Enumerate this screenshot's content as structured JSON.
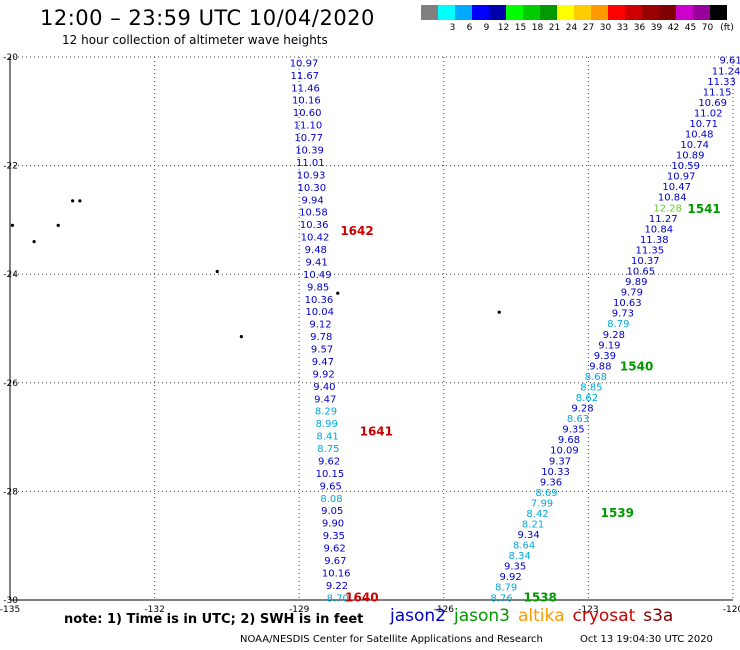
{
  "header": {
    "title": "12:00 – 23:59 UTC 10/04/2020",
    "subtitle": "12 hour collection of altimeter wave heights"
  },
  "colorbar": {
    "unit": "(ft)",
    "colors": [
      "#808080",
      "#00ffff",
      "#00aaff",
      "#0000ff",
      "#0000aa",
      "#00ff00",
      "#00cc00",
      "#009900",
      "#ffff00",
      "#ffcc00",
      "#ff9900",
      "#ff0000",
      "#cc0000",
      "#990000",
      "#800000",
      "#cc00cc",
      "#990099",
      "#000000"
    ],
    "labels": [
      "",
      "3",
      "6",
      "9",
      "12",
      "15",
      "18",
      "21",
      "24",
      "27",
      "30",
      "33",
      "36",
      "39",
      "42",
      "45",
      "70",
      ""
    ]
  },
  "footer": {
    "note": "note:  1) Time is in UTC;  2) SWH is in feet",
    "credit": "NOAA/NESDIS Center for Satellite Applications and Research",
    "timestamp": "Oct 13 19:04:30 UTC 2020"
  },
  "legend": [
    {
      "name": "jason2",
      "color": "#0000cc"
    },
    {
      "name": "jason3",
      "color": "#009900"
    },
    {
      "name": "altika",
      "color": "#ff9900"
    },
    {
      "name": "cryosat",
      "color": "#cc0000"
    },
    {
      "name": "s3a",
      "color": "#800000"
    }
  ],
  "chart_data": {
    "type": "scatter",
    "title": "12:00 – 23:59 UTC 10/04/2020",
    "xlim": [
      -135,
      -120
    ],
    "ylim": [
      -30,
      -20
    ],
    "xticks": [
      "-135",
      "-132",
      "-129",
      "-126",
      "-123",
      "-120"
    ],
    "yticks": [
      "-20",
      "-22",
      "-24",
      "-26",
      "-28",
      "-30"
    ],
    "grid": true,
    "series": [
      {
        "name": "cryosat",
        "color": "#cc0000",
        "x_start": -128.9,
        "y_start": -20.1,
        "x_end": -128.2,
        "y_end": -29.95,
        "values": [
          "10.97",
          "11.67",
          "11.46",
          "10.16",
          "10.60",
          "11.10",
          "10.77",
          "10.39",
          "11.01",
          "10.93",
          "10.30",
          "9.94",
          "10.58",
          "10.36",
          "10.42",
          "9.48",
          "9.41",
          "10.49",
          "9.85",
          "10.36",
          "10.04",
          "9.12",
          "9.78",
          "9.57",
          "9.47",
          "9.92",
          "9.40",
          "9.47",
          "8.29",
          "8.99",
          "8.41",
          "8.75",
          "9.62",
          "10.15",
          "9.65",
          "8.08",
          "9.05",
          "9.90",
          "9.35",
          "9.62",
          "9.67",
          "10.16",
          "9.22",
          "8.70"
        ],
        "pass_labels": [
          {
            "text": "1642",
            "x": -127.8,
            "y": -23.2
          },
          {
            "text": "1641",
            "x": -127.4,
            "y": -26.9
          },
          {
            "text": "1640",
            "x": -127.7,
            "y": -29.95
          }
        ]
      },
      {
        "name": "jason3",
        "color": "#009900",
        "x_start": -120.05,
        "y_start": -20.05,
        "x_end": -124.8,
        "y_end": -29.95,
        "values": [
          "9.61",
          "11.24",
          "11.33",
          "11.15",
          "10.69",
          "11.02",
          "10.71",
          "10.48",
          "10.74",
          "10.89",
          "10.59",
          "10.97",
          "10.47",
          "10.84",
          "12.28",
          "11.27",
          "10.84",
          "11.38",
          "11.35",
          "10.37",
          "10.65",
          "9.89",
          "9.79",
          "10.63",
          "9.73",
          "8.79",
          "9.28",
          "9.19",
          "9.39",
          "9.88",
          "8.68",
          "8.85",
          "8.62",
          "9.28",
          "8.63",
          "9.35",
          "9.68",
          "10.09",
          "9.37",
          "10.33",
          "9.36",
          "8.69",
          "7.99",
          "8.42",
          "8.21",
          "9.34",
          "8.64",
          "8.34",
          "9.35",
          "9.92",
          "8.79",
          "8.76"
        ],
        "pass_labels": [
          {
            "text": "1541",
            "x": -120.6,
            "y": -22.8
          },
          {
            "text": "1540",
            "x": -122.0,
            "y": -25.7
          },
          {
            "text": "1539",
            "x": -122.4,
            "y": -28.4
          },
          {
            "text": "1538",
            "x": -124.0,
            "y": -29.95
          }
        ]
      }
    ],
    "islands": [
      {
        "x": -133.7,
        "y": -22.65
      },
      {
        "x": -133.55,
        "y": -22.65
      },
      {
        "x": -134.0,
        "y": -23.1
      },
      {
        "x": -134.95,
        "y": -23.1
      },
      {
        "x": -134.5,
        "y": -23.4
      },
      {
        "x": -130.7,
        "y": -23.95
      },
      {
        "x": -130.2,
        "y": -25.15
      },
      {
        "x": -128.2,
        "y": -24.35
      },
      {
        "x": -124.85,
        "y": -24.7
      }
    ]
  }
}
